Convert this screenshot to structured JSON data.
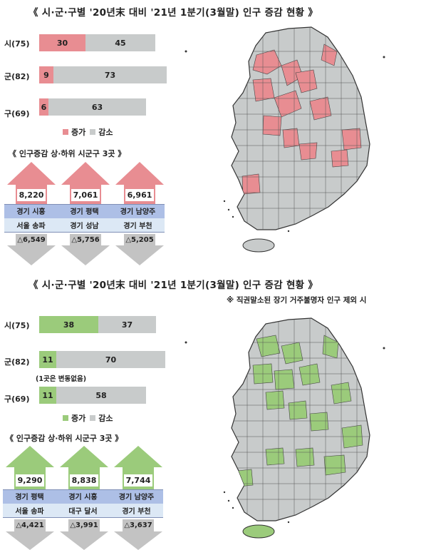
{
  "colors": {
    "increase_red": "#e88d92",
    "increase_green": "#9bcb7b",
    "decrease_gray": "#c8cbcb",
    "header_blue": "#adbfe6",
    "row_light": "#dce8f5",
    "down_arrow": "#c3c3c3"
  },
  "icons": {
    "map": "south-korea-map"
  },
  "panels": [
    {
      "title": "《 시·군·구별 '20년末 대비 '21년 1분기(3월말) 인구 증감 현황 》",
      "note": "",
      "increase_color": "#e88d92",
      "chart_data": {
        "type": "bar",
        "categories": [
          "시(75)",
          "군(82)",
          "구(69)"
        ],
        "series": [
          {
            "name": "증가",
            "values": [
              30,
              9,
              6
            ]
          },
          {
            "name": "감소",
            "values": [
              45,
              73,
              63
            ]
          }
        ],
        "stacked": true,
        "legend": "bottom"
      },
      "bar_note": "",
      "top_bottom": {
        "title": "《 인구증감 상·하위 시군구 3곳 》",
        "top_values": [
          "8,220",
          "7,061",
          "6,961"
        ],
        "top_names": [
          "경기 시흥",
          "경기 평택",
          "경기 남양주"
        ],
        "bottom_names": [
          "서울 송파",
          "경기 성남",
          "경기 부천"
        ],
        "bottom_values": [
          "△6,549",
          "△5,756",
          "△5,205"
        ]
      }
    },
    {
      "title": "《 시·군·구별 '20년末 대비 '21년 1분기(3월말) 인구 증감 현황 》",
      "note": "※ 직권말소된 장기 거주불명자 인구 제외 시",
      "increase_color": "#9bcb7b",
      "chart_data": {
        "type": "bar",
        "categories": [
          "시(75)",
          "군(82)",
          "구(69)"
        ],
        "series": [
          {
            "name": "증가",
            "values": [
              38,
              11,
              11
            ]
          },
          {
            "name": "감소",
            "values": [
              37,
              70,
              58
            ]
          }
        ],
        "stacked": true,
        "legend": "bottom"
      },
      "bar_note": "(1곳은 변동없음)",
      "top_bottom": {
        "title": "《 인구증감 상·하위 시군구 3곳 》",
        "top_values": [
          "9,290",
          "8,838",
          "7,744"
        ],
        "top_names": [
          "경기 평택",
          "경기 시흥",
          "경기 남양주"
        ],
        "bottom_names": [
          "서울 송파",
          "대구 달서",
          "경기 부천"
        ],
        "bottom_values": [
          "△4,421",
          "△3,991",
          "△3,637"
        ]
      }
    }
  ]
}
